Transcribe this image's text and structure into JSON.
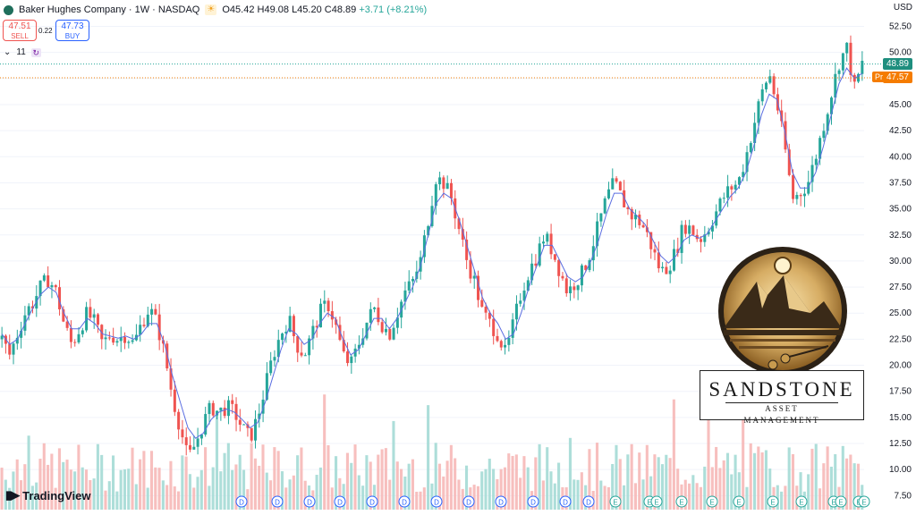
{
  "header": {
    "symbol_title": "Baker Hughes Company · 1W · NASDAQ",
    "ohlc_open": "O45.42",
    "ohlc_high": "H49.08",
    "ohlc_low": "L45.20",
    "ohlc_close": "C48.89",
    "change": "+3.71 (+8.21%)"
  },
  "trade": {
    "sell_price": "47.51",
    "sell_label": "SELL",
    "spread": "0.22",
    "buy_price": "47.73",
    "buy_label": "BUY"
  },
  "indicators": {
    "count": "11"
  },
  "axis": {
    "currency": "USD"
  },
  "price_tags": {
    "last": "48.89",
    "pre_label": "Pre",
    "pre": "47.57"
  },
  "watermark": {
    "brand": "TradingView"
  },
  "overlay_logo": {
    "name": "SANDSTONE",
    "subtitle": "ASSET MANAGEMENT"
  },
  "colors": {
    "up": "#26a69a",
    "down": "#ef5350",
    "ma": "#5b6ee1",
    "last_line": "#26a69a",
    "pre_line": "#f57c00"
  },
  "chart_data": {
    "type": "candlestick",
    "interval": "1W",
    "y_axis": {
      "ticks": [
        7.5,
        10,
        12.5,
        15,
        17.5,
        20,
        22.5,
        25,
        27.5,
        30,
        32.5,
        35,
        37.5,
        40,
        42.5,
        45,
        47.5,
        50,
        52.5
      ],
      "ylim": [
        6.5,
        54
      ]
    },
    "close_path": [
      22.5,
      21,
      23,
      25,
      26,
      27.5,
      28.3,
      27,
      24,
      22,
      23.5,
      25,
      24,
      22,
      23,
      22.5,
      23,
      22,
      24,
      25.5,
      24,
      21,
      17,
      14,
      11,
      12.5,
      14.5,
      16,
      15.5,
      16,
      15.5,
      14,
      13,
      15,
      18,
      21,
      23,
      24.5,
      22,
      21,
      23,
      25,
      26,
      24,
      21,
      20,
      22,
      24,
      25.5,
      24,
      23,
      25,
      27,
      28,
      30,
      34,
      38,
      37.5,
      36,
      33,
      30,
      28,
      25,
      24,
      23,
      21,
      24,
      27,
      29,
      30.5,
      32.5,
      31,
      29,
      27,
      28,
      29,
      31,
      33.5,
      36,
      37.5,
      36,
      34.5,
      34,
      33,
      31,
      29,
      29.5,
      31,
      33.5,
      33,
      32,
      33,
      34.5,
      36,
      37,
      37.5,
      40,
      43,
      46,
      48,
      45,
      41,
      36,
      36.5,
      37.5,
      40,
      43,
      46,
      49,
      50.5,
      46.5,
      48.89
    ],
    "ma_path": [
      23,
      22,
      22.5,
      24,
      25.5,
      26.8,
      27.5,
      27,
      25,
      23.5,
      23.5,
      24.5,
      24,
      23,
      22.8,
      22.6,
      22.8,
      22.5,
      23,
      24,
      24,
      22,
      19,
      16.5,
      14,
      13,
      13.5,
      14.8,
      15.5,
      15.8,
      15.5,
      14.8,
      14,
      14.5,
      16.5,
      19,
      21.5,
      23.5,
      23,
      22,
      22.5,
      24,
      25,
      24.5,
      22.5,
      21,
      21.5,
      23,
      24.5,
      24.5,
      23.5,
      24.5,
      26,
      27.5,
      29.5,
      32.5,
      35.5,
      36.5,
      36,
      34,
      31.5,
      29,
      26.5,
      25,
      24,
      22.5,
      23,
      25,
      27.5,
      29.5,
      31.5,
      31.5,
      30,
      28.5,
      28,
      28.5,
      30,
      32,
      34.5,
      36.5,
      36.5,
      35,
      34.3,
      33.5,
      32,
      30.5,
      29.8,
      30.5,
      32,
      32.5,
      32.2,
      32.6,
      33.8,
      35,
      36.2,
      37,
      38.5,
      41,
      44,
      46,
      45.5,
      42.5,
      38.5,
      37,
      37,
      38.5,
      41,
      44,
      47,
      48.5,
      47.5,
      48
    ],
    "high_label_points": [
      {
        "x_index": 57,
        "y": 39.8
      },
      {
        "x_index": 110,
        "y": 50.9
      }
    ],
    "last_price": 48.89,
    "premarket_price": 47.57,
    "volume": {
      "bars": 225,
      "max_relative": 1
    },
    "dividend_markers": [
      "D",
      "D",
      "D",
      "D",
      "D",
      "D",
      "D",
      "D",
      "D",
      "D",
      "D",
      "D",
      "E",
      "E",
      "E",
      "E",
      "E",
      "E",
      "E",
      "E",
      "E",
      "E",
      "E",
      "E"
    ]
  }
}
